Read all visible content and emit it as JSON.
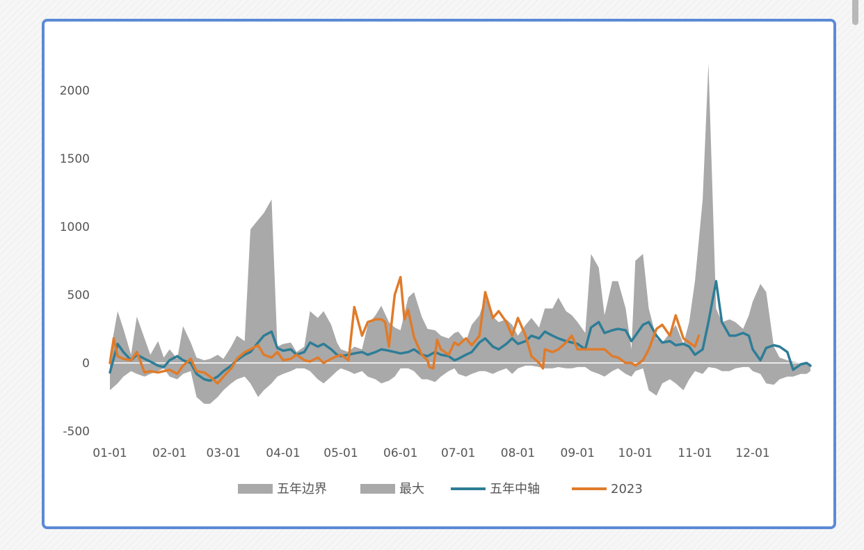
{
  "chart_data": {
    "type": "area",
    "title": "",
    "xlabel": "",
    "ylabel": "",
    "ylim": [
      -500,
      2200
    ],
    "yticks": [
      "-500",
      "0",
      "500",
      "1000",
      "1500",
      "2000"
    ],
    "xticks": [
      "01-01",
      "02-01",
      "03-01",
      "04-01",
      "05-01",
      "06-01",
      "07-01",
      "08-01",
      "09-01",
      "10-01",
      "11-01",
      "12-01"
    ],
    "legend_position": "bottom",
    "grid": false,
    "legend": [
      {
        "label": "五年边界",
        "kind": "band",
        "color": "#a9a9a9"
      },
      {
        "label": "最大",
        "kind": "band",
        "color": "#a9a9a9"
      },
      {
        "label": "五年中轴",
        "kind": "line",
        "color": "#2e7d96"
      },
      {
        "label": "2023",
        "kind": "line",
        "color": "#e07b2a"
      }
    ],
    "band": {
      "x": [
        "01-01",
        "01-05",
        "01-08",
        "01-12",
        "01-15",
        "01-19",
        "01-22",
        "01-26",
        "01-29",
        "02-01",
        "02-05",
        "02-08",
        "02-12",
        "02-15",
        "02-19",
        "02-22",
        "02-26",
        "03-01",
        "03-05",
        "03-08",
        "03-12",
        "03-15",
        "03-19",
        "03-22",
        "03-26",
        "03-29",
        "04-01",
        "04-05",
        "04-08",
        "04-12",
        "04-15",
        "04-19",
        "04-22",
        "04-26",
        "04-29",
        "05-01",
        "05-05",
        "05-08",
        "05-12",
        "05-15",
        "05-19",
        "05-22",
        "05-26",
        "05-29",
        "06-01",
        "06-05",
        "06-08",
        "06-12",
        "06-15",
        "06-19",
        "06-22",
        "06-26",
        "06-29",
        "07-01",
        "07-05",
        "07-08",
        "07-12",
        "07-15",
        "07-19",
        "07-22",
        "07-26",
        "07-29",
        "08-01",
        "08-05",
        "08-08",
        "08-12",
        "08-15",
        "08-19",
        "08-22",
        "08-26",
        "08-29",
        "09-01",
        "09-05",
        "09-08",
        "09-12",
        "09-15",
        "09-19",
        "09-22",
        "09-26",
        "09-29",
        "10-01",
        "10-05",
        "10-08",
        "10-12",
        "10-15",
        "10-19",
        "10-22",
        "10-26",
        "10-29",
        "11-01",
        "11-05",
        "11-08",
        "11-12",
        "11-15",
        "11-19",
        "11-22",
        "11-26",
        "11-29",
        "12-01",
        "12-05",
        "12-08",
        "12-12",
        "12-15",
        "12-19",
        "12-22",
        "12-26",
        "12-29",
        "12-31"
      ],
      "upper": [
        60,
        380,
        250,
        60,
        340,
        180,
        60,
        160,
        40,
        100,
        30,
        270,
        150,
        40,
        20,
        30,
        60,
        30,
        120,
        200,
        160,
        980,
        1050,
        1100,
        1200,
        120,
        140,
        150,
        80,
        120,
        380,
        330,
        380,
        280,
        150,
        100,
        80,
        120,
        100,
        280,
        350,
        420,
        300,
        260,
        240,
        480,
        520,
        340,
        250,
        240,
        200,
        180,
        220,
        230,
        160,
        280,
        350,
        480,
        340,
        300,
        320,
        280,
        200,
        280,
        330,
        260,
        400,
        400,
        480,
        380,
        350,
        300,
        220,
        800,
        700,
        350,
        600,
        600,
        400,
        100,
        750,
        800,
        400,
        180,
        150,
        220,
        280,
        140,
        300,
        600,
        1200,
        2200,
        400,
        300,
        320,
        300,
        250,
        350,
        450,
        580,
        520,
        120,
        40,
        20,
        10,
        0,
        0,
        0
      ],
      "lower": [
        -200,
        -150,
        -100,
        -60,
        -80,
        -100,
        -80,
        -60,
        -40,
        -100,
        -120,
        -80,
        -60,
        -250,
        -300,
        -300,
        -250,
        -200,
        -150,
        -120,
        -100,
        -150,
        -250,
        -200,
        -150,
        -100,
        -80,
        -60,
        -40,
        -40,
        -60,
        -120,
        -150,
        -100,
        -60,
        -40,
        -60,
        -80,
        -60,
        -100,
        -120,
        -150,
        -130,
        -100,
        -40,
        -40,
        -60,
        -120,
        -120,
        -140,
        -100,
        -60,
        -40,
        -80,
        -100,
        -80,
        -60,
        -60,
        -80,
        -60,
        -40,
        -80,
        -40,
        -20,
        -20,
        -30,
        -40,
        -40,
        -30,
        -40,
        -40,
        -30,
        -30,
        -60,
        -80,
        -100,
        -60,
        -40,
        -80,
        -100,
        -60,
        -40,
        -200,
        -240,
        -150,
        -120,
        -150,
        -200,
        -120,
        -60,
        -80,
        -30,
        -40,
        -60,
        -60,
        -40,
        -30,
        -30,
        -60,
        -80,
        -150,
        -160,
        -120,
        -100,
        -100,
        -80,
        -80,
        -60
      ]
    },
    "series": [
      {
        "name": "五年中轴",
        "color": "#2e7d96",
        "x": [
          "01-01",
          "01-05",
          "01-08",
          "01-12",
          "01-15",
          "01-19",
          "01-22",
          "01-26",
          "01-29",
          "02-01",
          "02-05",
          "02-08",
          "02-12",
          "02-15",
          "02-19",
          "02-22",
          "02-26",
          "03-01",
          "03-05",
          "03-08",
          "03-12",
          "03-15",
          "03-19",
          "03-22",
          "03-26",
          "03-29",
          "04-01",
          "04-05",
          "04-08",
          "04-12",
          "04-15",
          "04-19",
          "04-22",
          "04-26",
          "04-29",
          "05-01",
          "05-05",
          "05-08",
          "05-12",
          "05-15",
          "05-19",
          "05-22",
          "05-26",
          "05-29",
          "06-01",
          "06-05",
          "06-08",
          "06-12",
          "06-15",
          "06-19",
          "06-22",
          "06-26",
          "06-29",
          "07-01",
          "07-05",
          "07-08",
          "07-12",
          "07-15",
          "07-19",
          "07-22",
          "07-26",
          "07-29",
          "08-01",
          "08-05",
          "08-08",
          "08-12",
          "08-15",
          "08-19",
          "08-22",
          "08-26",
          "08-29",
          "09-01",
          "09-05",
          "09-08",
          "09-12",
          "09-15",
          "09-19",
          "09-22",
          "09-26",
          "09-29",
          "10-01",
          "10-05",
          "10-08",
          "10-12",
          "10-15",
          "10-19",
          "10-22",
          "10-26",
          "10-29",
          "11-01",
          "11-05",
          "11-08",
          "11-12",
          "11-15",
          "11-19",
          "11-22",
          "11-26",
          "11-29",
          "12-01",
          "12-05",
          "12-08",
          "12-12",
          "12-15",
          "12-19",
          "12-22",
          "12-26",
          "12-29",
          "12-31"
        ],
        "values": [
          -70,
          140,
          80,
          20,
          60,
          30,
          10,
          -20,
          -30,
          20,
          50,
          20,
          0,
          -80,
          -120,
          -130,
          -100,
          -60,
          -20,
          20,
          60,
          80,
          150,
          200,
          230,
          110,
          90,
          100,
          60,
          80,
          150,
          120,
          140,
          100,
          60,
          50,
          60,
          70,
          80,
          60,
          80,
          100,
          90,
          80,
          70,
          80,
          100,
          60,
          50,
          80,
          60,
          50,
          20,
          30,
          60,
          80,
          150,
          180,
          120,
          100,
          140,
          180,
          140,
          160,
          200,
          180,
          230,
          200,
          180,
          160,
          150,
          140,
          100,
          260,
          300,
          220,
          240,
          250,
          240,
          160,
          200,
          280,
          300,
          200,
          150,
          160,
          130,
          140,
          120,
          60,
          100,
          300,
          600,
          300,
          200,
          200,
          220,
          200,
          100,
          20,
          110,
          130,
          120,
          80,
          -50,
          -10,
          0,
          -20
        ]
      },
      {
        "name": "2023",
        "color": "#e07b2a",
        "x": [
          "01-01",
          "01-03",
          "01-05",
          "01-08",
          "01-12",
          "01-15",
          "01-19",
          "01-22",
          "01-26",
          "01-29",
          "02-01",
          "02-05",
          "02-08",
          "02-12",
          "02-15",
          "02-19",
          "02-22",
          "02-26",
          "03-01",
          "03-05",
          "03-08",
          "03-12",
          "03-15",
          "03-19",
          "03-22",
          "03-26",
          "03-29",
          "04-01",
          "04-05",
          "04-08",
          "04-12",
          "04-15",
          "04-19",
          "04-22",
          "04-26",
          "04-29",
          "05-01",
          "05-05",
          "05-08",
          "05-12",
          "05-15",
          "05-19",
          "05-22",
          "05-24",
          "05-26",
          "05-29",
          "06-01",
          "06-03",
          "06-05",
          "06-08",
          "06-12",
          "06-15",
          "06-16",
          "06-18",
          "06-20",
          "06-22",
          "06-24",
          "06-26",
          "06-29",
          "07-01",
          "07-05",
          "07-08",
          "07-12",
          "07-15",
          "07-19",
          "07-22",
          "07-26",
          "07-29",
          "08-01",
          "08-05",
          "08-08",
          "08-12",
          "08-14",
          "08-15",
          "08-19",
          "08-22",
          "08-26",
          "08-29",
          "09-01",
          "09-05",
          "09-08",
          "09-12",
          "09-15",
          "09-19",
          "09-22",
          "09-26",
          "09-29",
          "10-01",
          "10-05",
          "10-08",
          "10-12",
          "10-15",
          "10-19",
          "10-22",
          "10-26",
          "10-29",
          "11-01",
          "11-03"
        ],
        "values": [
          0,
          180,
          50,
          30,
          20,
          80,
          -70,
          -60,
          -70,
          -60,
          -50,
          -80,
          -20,
          30,
          -60,
          -70,
          -100,
          -150,
          -100,
          -40,
          30,
          80,
          100,
          130,
          60,
          40,
          80,
          20,
          30,
          60,
          20,
          10,
          40,
          0,
          30,
          50,
          60,
          20,
          410,
          200,
          300,
          320,
          320,
          300,
          120,
          500,
          630,
          320,
          390,
          190,
          60,
          20,
          -30,
          -40,
          170,
          100,
          80,
          60,
          150,
          130,
          180,
          130,
          200,
          520,
          330,
          380,
          300,
          200,
          330,
          200,
          50,
          0,
          -40,
          100,
          80,
          100,
          150,
          200,
          100,
          100,
          100,
          100,
          100,
          50,
          40,
          0,
          0,
          -20,
          20,
          100,
          250,
          280,
          200,
          350,
          180,
          150,
          120,
          200
        ]
      }
    ]
  }
}
